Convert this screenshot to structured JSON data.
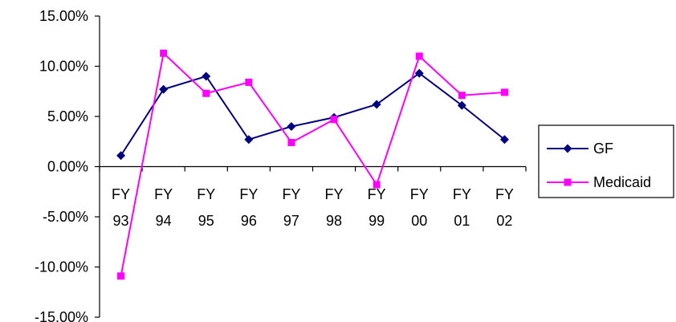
{
  "chart_data": {
    "type": "line",
    "categories": [
      [
        "FY",
        "93"
      ],
      [
        "FY",
        "94"
      ],
      [
        "FY",
        "95"
      ],
      [
        "FY",
        "96"
      ],
      [
        "FY",
        "97"
      ],
      [
        "FY",
        "98"
      ],
      [
        "FY",
        "99"
      ],
      [
        "FY",
        "00"
      ],
      [
        "FY",
        "01"
      ],
      [
        "FY",
        "02"
      ]
    ],
    "y_ticks": [
      "15.00%",
      "10.00%",
      "5.00%",
      "0.00%",
      "-5.00%",
      "-10.00%",
      "-15.00%"
    ],
    "ylim": [
      -15,
      15
    ],
    "y_unit": "%",
    "grid": false,
    "legend_position": "right",
    "series": [
      {
        "name": "GF",
        "color": "#000080",
        "marker": "diamond",
        "values": [
          1.1,
          7.7,
          9.0,
          2.7,
          4.0,
          4.9,
          6.2,
          9.3,
          6.1,
          2.7
        ]
      },
      {
        "name": "Medicaid",
        "color": "#FF00FF",
        "marker": "square",
        "values": [
          -10.9,
          11.3,
          7.3,
          8.4,
          2.4,
          4.7,
          -1.8,
          11.0,
          7.1,
          7.4
        ]
      }
    ]
  }
}
